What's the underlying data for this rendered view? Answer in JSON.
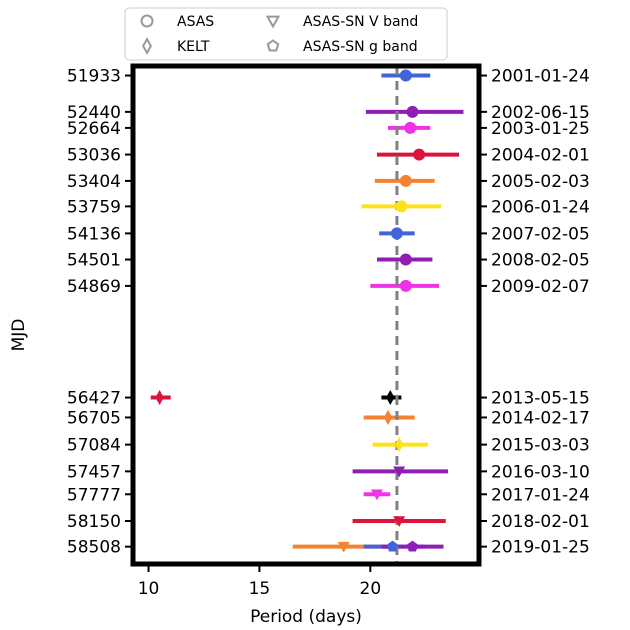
{
  "chart_data": {
    "type": "scatter",
    "xlabel": "Period (days)",
    "ylabel": "MJD",
    "xlim": [
      9.3,
      24.9
    ],
    "x_ticks": [
      10,
      15,
      20
    ],
    "reference_line_x": 21.2,
    "grid": false,
    "legend_position": "top",
    "legend": [
      {
        "label": "ASAS",
        "marker": "circle"
      },
      {
        "label": "KELT",
        "marker": "thin-diamond"
      },
      {
        "label": "ASAS-SN V band",
        "marker": "triangle-down"
      },
      {
        "label": "ASAS-SN g band",
        "marker": "pentagon"
      }
    ],
    "rows": [
      {
        "mjd": "51933",
        "date": "2001-01-24"
      },
      {
        "mjd": "52440",
        "date": "2002-06-15"
      },
      {
        "mjd": "52664",
        "date": "2003-01-25"
      },
      {
        "mjd": "53036",
        "date": "2004-02-01"
      },
      {
        "mjd": "53404",
        "date": "2005-02-03"
      },
      {
        "mjd": "53759",
        "date": "2006-01-24"
      },
      {
        "mjd": "54136",
        "date": "2007-02-05"
      },
      {
        "mjd": "54501",
        "date": "2008-02-05"
      },
      {
        "mjd": "54869",
        "date": "2009-02-07"
      },
      {
        "mjd": "56427",
        "date": "2013-05-15"
      },
      {
        "mjd": "56705",
        "date": "2014-02-17"
      },
      {
        "mjd": "57084",
        "date": "2015-03-03"
      },
      {
        "mjd": "57457",
        "date": "2016-03-10"
      },
      {
        "mjd": "57777",
        "date": "2017-01-24"
      },
      {
        "mjd": "58150",
        "date": "2018-02-01"
      },
      {
        "mjd": "58508",
        "date": "2019-01-25"
      }
    ],
    "points": [
      {
        "survey": "ASAS",
        "mjd": 51933,
        "period": 21.6,
        "err_low": 20.5,
        "err_high": 22.7,
        "color": "#4363d8"
      },
      {
        "survey": "ASAS",
        "mjd": 52440,
        "period": 21.9,
        "err_low": 19.8,
        "err_high": 24.2,
        "color": "#911eb4"
      },
      {
        "survey": "ASAS",
        "mjd": 52664,
        "period": 21.8,
        "err_low": 20.8,
        "err_high": 22.7,
        "color": "#f032e6"
      },
      {
        "survey": "ASAS",
        "mjd": 53036,
        "period": 22.2,
        "err_low": 20.3,
        "err_high": 24.0,
        "color": "#dc143c"
      },
      {
        "survey": "ASAS",
        "mjd": 53404,
        "period": 21.6,
        "err_low": 20.2,
        "err_high": 22.9,
        "color": "#f58231"
      },
      {
        "survey": "ASAS",
        "mjd": 53759,
        "period": 21.4,
        "err_low": 19.6,
        "err_high": 23.2,
        "color": "#ffe119"
      },
      {
        "survey": "ASAS",
        "mjd": 54136,
        "period": 21.2,
        "err_low": 20.4,
        "err_high": 22.0,
        "color": "#4363d8"
      },
      {
        "survey": "ASAS",
        "mjd": 54501,
        "period": 21.6,
        "err_low": 20.3,
        "err_high": 22.8,
        "color": "#911eb4"
      },
      {
        "survey": "ASAS",
        "mjd": 54869,
        "period": 21.6,
        "err_low": 20.0,
        "err_high": 23.1,
        "color": "#f032e6"
      },
      {
        "survey": "KELT",
        "mjd": 56427,
        "period": 10.5,
        "err_low": 10.1,
        "err_high": 11.0,
        "color": "#dc143c"
      },
      {
        "survey": "KELT",
        "mjd": 56427,
        "period": 20.9,
        "err_low": 20.5,
        "err_high": 21.4,
        "color": "#000000"
      },
      {
        "survey": "KELT",
        "mjd": 56705,
        "period": 20.8,
        "err_low": 19.7,
        "err_high": 22.0,
        "color": "#f58231"
      },
      {
        "survey": "KELT",
        "mjd": 57084,
        "period": 21.3,
        "err_low": 20.1,
        "err_high": 22.6,
        "color": "#ffe119"
      },
      {
        "survey": "ASAS-SN V band",
        "mjd": 57457,
        "period": 21.3,
        "err_low": 19.2,
        "err_high": 23.5,
        "color": "#911eb4"
      },
      {
        "survey": "ASAS-SN V band",
        "mjd": 57777,
        "period": 20.3,
        "err_low": 19.7,
        "err_high": 20.9,
        "color": "#f032e6"
      },
      {
        "survey": "ASAS-SN V band",
        "mjd": 58150,
        "period": 21.3,
        "err_low": 19.2,
        "err_high": 23.4,
        "color": "#dc143c"
      },
      {
        "survey": "ASAS-SN V band",
        "mjd": 58508,
        "period": 18.8,
        "err_low": 16.5,
        "err_high": 21.2,
        "color": "#f58231"
      },
      {
        "survey": "ASAS-SN g band",
        "mjd": 58508,
        "period": 21.0,
        "err_low": 19.7,
        "err_high": 22.5,
        "color": "#4363d8"
      },
      {
        "survey": "ASAS-SN g band",
        "mjd": 58508,
        "period": 21.9,
        "err_low": 20.5,
        "err_high": 23.3,
        "color": "#911eb4"
      }
    ]
  }
}
